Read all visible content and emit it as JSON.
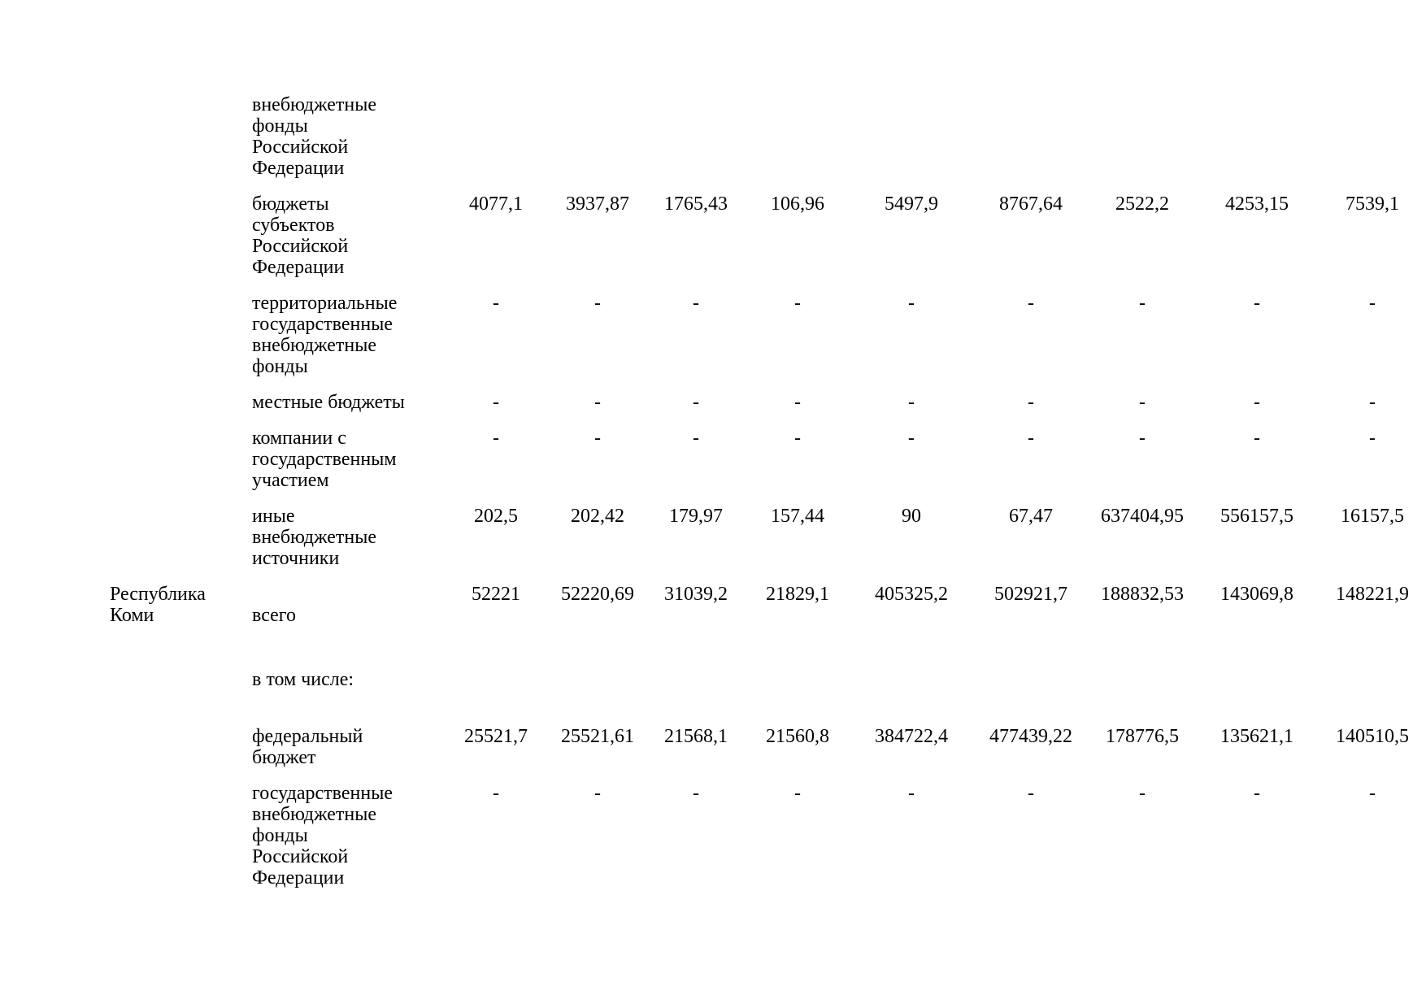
{
  "page": {
    "background_color": "#ffffff",
    "text_color": "#000000"
  },
  "table": {
    "rows": [
      {
        "region": "",
        "category": "внебюджетные\nфонды\nРоссийской\nФедерации",
        "values": [
          "",
          "",
          "",
          "",
          "",
          "",
          "",
          "",
          ""
        ]
      },
      {
        "region": "",
        "category": "бюджеты\nсубъектов\nРоссийской\nФедерации",
        "values": [
          "4077,1",
          "3937,87",
          "1765,43",
          "106,96",
          "5497,9",
          "8767,64",
          "2522,2",
          "4253,15",
          "7539,1"
        ]
      },
      {
        "region": "",
        "category": "территориальные\nгосударственные\nвнебюджетные\nфонды",
        "values": [
          "-",
          "-",
          "-",
          "-",
          "-",
          "-",
          "-",
          "-",
          "-"
        ]
      },
      {
        "region": "",
        "category": "местные бюджеты",
        "values": [
          "-",
          "-",
          "-",
          "-",
          "-",
          "-",
          "-",
          "-",
          "-"
        ]
      },
      {
        "region": "",
        "category": "компании с\nгосударственным\nучастием",
        "values": [
          "-",
          "-",
          "-",
          "-",
          "-",
          "-",
          "-",
          "-",
          "-"
        ]
      },
      {
        "region": "",
        "category": "иные\nвнебюджетные\nисточники",
        "values": [
          "202,5",
          "202,42",
          "179,97",
          "157,44",
          "90",
          "67,47",
          "637404,95",
          "556157,5",
          "16157,5"
        ]
      },
      {
        "region": "Республика\nКоми",
        "category": "всего",
        "note": "в том числе:",
        "values": [
          "52221",
          "52220,69",
          "31039,2",
          "21829,1",
          "405325,2",
          "502921,7",
          "188832,53",
          "143069,8",
          "148221,9"
        ]
      },
      {
        "region": "",
        "category": "федеральный\nбюджет",
        "values": [
          "25521,7",
          "25521,61",
          "21568,1",
          "21560,8",
          "384722,4",
          "477439,22",
          "178776,5",
          "135621,1",
          "140510,5"
        ]
      },
      {
        "region": "",
        "category": "государственные\nвнебюджетные\nфонды\nРоссийской\nФедерации",
        "values": [
          "-",
          "-",
          "-",
          "-",
          "-",
          "-",
          "-",
          "-",
          "-"
        ]
      }
    ]
  }
}
